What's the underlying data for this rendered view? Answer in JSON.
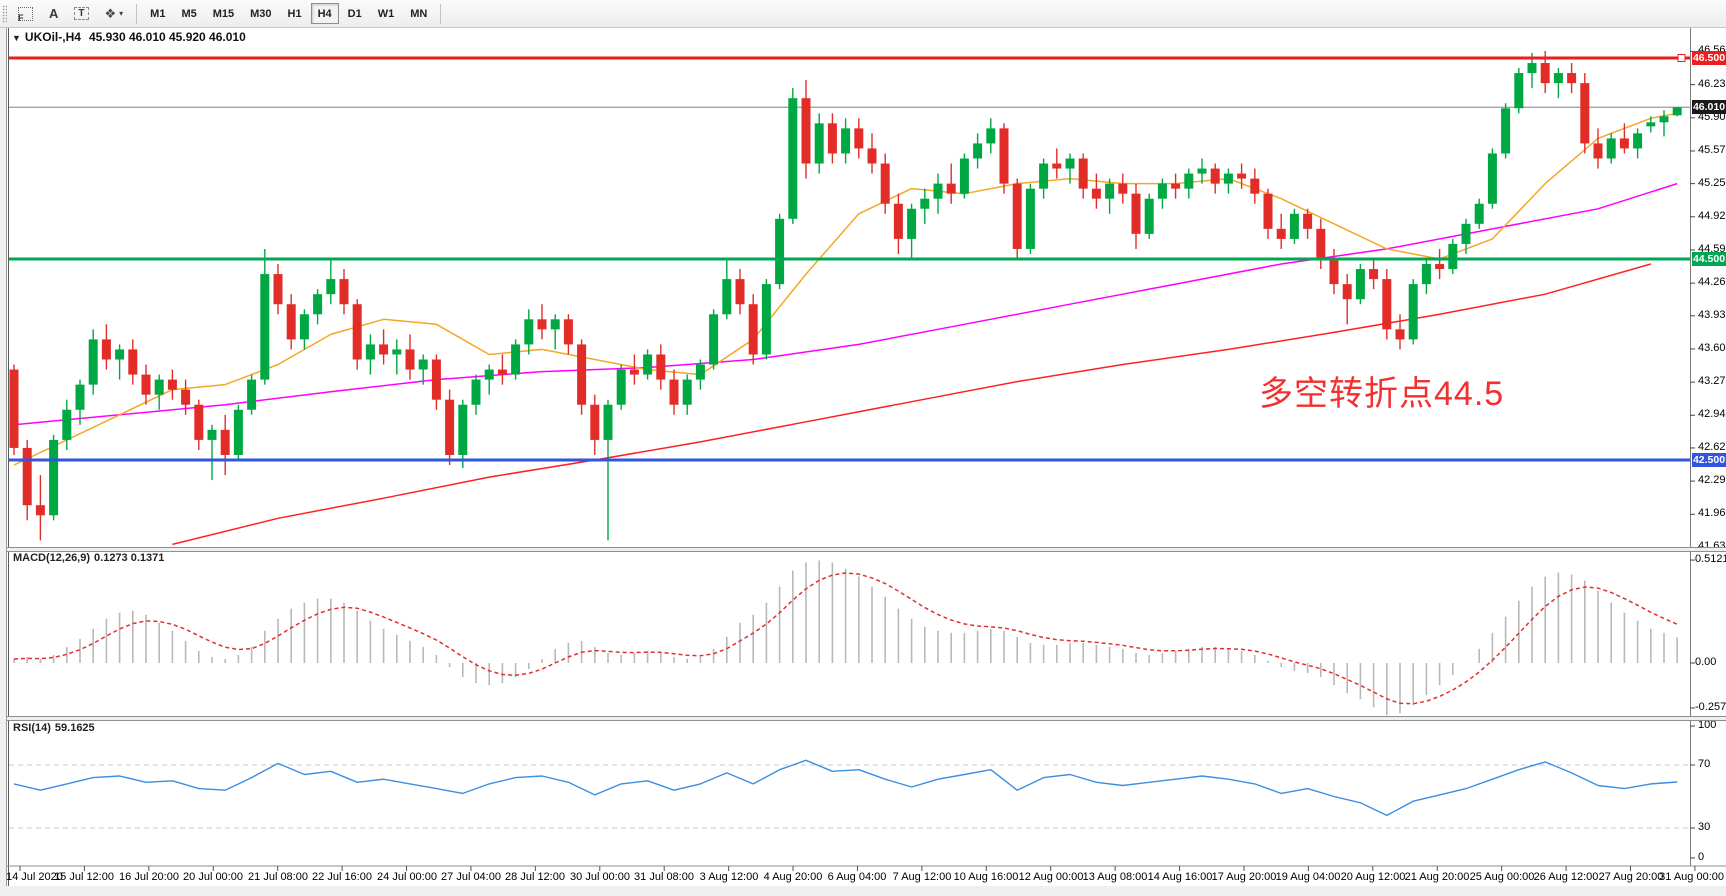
{
  "toolbar": {
    "tools": [
      {
        "name": "snap-grid",
        "glyph": "F"
      },
      {
        "name": "text-label",
        "glyph": "A"
      },
      {
        "name": "text-frame",
        "glyph": "T"
      },
      {
        "name": "shapes",
        "glyph": "❖"
      }
    ],
    "timeframes": [
      "M1",
      "M5",
      "M15",
      "M30",
      "H1",
      "H4",
      "D1",
      "W1",
      "MN"
    ],
    "active_timeframe": "H4"
  },
  "chart": {
    "title": "UKOil-,H4",
    "ohlc": "45.930 46.010 45.920 46.010",
    "annotation": {
      "text": "多空转折点44.5",
      "color": "#f2302e"
    },
    "levels": [
      {
        "price": "46.500",
        "value": 46.5,
        "color": "#ee1c1c",
        "type": "resistance"
      },
      {
        "price": "46.010",
        "value": 46.01,
        "color": "#1a1a1a",
        "type": "current"
      },
      {
        "price": "44.500",
        "value": 44.5,
        "color": "#00a651",
        "type": "pivot"
      },
      {
        "price": "42.500",
        "value": 42.5,
        "color": "#3056e0",
        "type": "support"
      }
    ]
  },
  "chart_data": {
    "type": "candlestick",
    "symbol": "UKOil-",
    "timeframe": "H4",
    "ohlc_current": {
      "open": 45.93,
      "high": 46.01,
      "low": 45.92,
      "close": 46.01
    },
    "price_range_visible": [
      41.63,
      46.66
    ],
    "y_axis_ticks": [
      "46.565",
      "46.235",
      "45.905",
      "45.575",
      "45.250",
      "44.920",
      "44.590",
      "44.260",
      "43.935",
      "43.605",
      "43.275",
      "42.945",
      "42.620",
      "42.290",
      "41.960",
      "41.630"
    ],
    "x_axis_labels": [
      "14 Jul 2020",
      "15 Jul 12:00",
      "16 Jul 20:00",
      "20 Jul 00:00",
      "21 Jul 08:00",
      "22 Jul 16:00",
      "24 Jul 00:00",
      "27 Jul 04:00",
      "28 Jul 12:00",
      "30 Jul 00:00",
      "31 Jul 08:00",
      "3 Aug 12:00",
      "4 Aug 20:00",
      "6 Aug 04:00",
      "7 Aug 12:00",
      "10 Aug 16:00",
      "12 Aug 00:00",
      "13 Aug 08:00",
      "14 Aug 16:00",
      "17 Aug 20:00",
      "19 Aug 04:00",
      "20 Aug 12:00",
      "21 Aug 20:00",
      "25 Aug 00:00",
      "26 Aug 12:00",
      "27 Aug 20:00",
      "31 Aug 00:00"
    ],
    "candle_colors": {
      "up": "#00a843",
      "down": "#e22c28"
    },
    "candles": [
      [
        43.4,
        43.45,
        42.55,
        42.62
      ],
      [
        42.62,
        42.7,
        41.9,
        42.05
      ],
      [
        42.05,
        42.35,
        41.7,
        41.95
      ],
      [
        41.95,
        42.75,
        41.9,
        42.7
      ],
      [
        42.7,
        43.1,
        42.6,
        43.0
      ],
      [
        43.0,
        43.3,
        42.85,
        43.25
      ],
      [
        43.25,
        43.8,
        43.15,
        43.7
      ],
      [
        43.7,
        43.85,
        43.4,
        43.5
      ],
      [
        43.5,
        43.65,
        43.3,
        43.6
      ],
      [
        43.6,
        43.7,
        43.25,
        43.35
      ],
      [
        43.35,
        43.45,
        43.05,
        43.15
      ],
      [
        43.15,
        43.35,
        43.0,
        43.3
      ],
      [
        43.3,
        43.4,
        43.1,
        43.2
      ],
      [
        43.2,
        43.3,
        42.95,
        43.05
      ],
      [
        43.05,
        43.1,
        42.6,
        42.7
      ],
      [
        42.7,
        42.85,
        42.3,
        42.8
      ],
      [
        42.8,
        42.95,
        42.35,
        42.55
      ],
      [
        42.55,
        43.05,
        42.5,
        43.0
      ],
      [
        43.0,
        43.35,
        42.95,
        43.3
      ],
      [
        43.3,
        44.6,
        43.25,
        44.35
      ],
      [
        44.35,
        44.45,
        43.95,
        44.05
      ],
      [
        44.05,
        44.15,
        43.6,
        43.7
      ],
      [
        43.7,
        44.0,
        43.6,
        43.95
      ],
      [
        43.95,
        44.2,
        43.85,
        44.15
      ],
      [
        44.15,
        44.5,
        44.05,
        44.3
      ],
      [
        44.3,
        44.4,
        43.95,
        44.05
      ],
      [
        44.05,
        44.1,
        43.4,
        43.5
      ],
      [
        43.5,
        43.75,
        43.35,
        43.65
      ],
      [
        43.65,
        43.8,
        43.45,
        43.55
      ],
      [
        43.55,
        43.7,
        43.35,
        43.6
      ],
      [
        43.6,
        43.75,
        43.3,
        43.4
      ],
      [
        43.4,
        43.55,
        43.25,
        43.5
      ],
      [
        43.5,
        43.55,
        43.0,
        43.1
      ],
      [
        43.1,
        43.2,
        42.45,
        42.55
      ],
      [
        42.55,
        43.1,
        42.42,
        43.05
      ],
      [
        43.05,
        43.35,
        42.95,
        43.3
      ],
      [
        43.3,
        43.45,
        43.15,
        43.4
      ],
      [
        43.4,
        43.55,
        43.25,
        43.35
      ],
      [
        43.35,
        43.7,
        43.3,
        43.65
      ],
      [
        43.65,
        44.0,
        43.55,
        43.9
      ],
      [
        43.9,
        44.05,
        43.7,
        43.8
      ],
      [
        43.8,
        43.95,
        43.6,
        43.9
      ],
      [
        43.9,
        43.95,
        43.55,
        43.65
      ],
      [
        43.65,
        43.7,
        42.95,
        43.05
      ],
      [
        43.05,
        43.15,
        42.55,
        42.7
      ],
      [
        42.7,
        43.1,
        41.7,
        43.05
      ],
      [
        43.05,
        43.45,
        43.0,
        43.4
      ],
      [
        43.4,
        43.55,
        43.25,
        43.35
      ],
      [
        43.35,
        43.6,
        43.3,
        43.55
      ],
      [
        43.55,
        43.65,
        43.2,
        43.3
      ],
      [
        43.3,
        43.4,
        42.95,
        43.05
      ],
      [
        43.05,
        43.35,
        42.95,
        43.3
      ],
      [
        43.3,
        43.5,
        43.2,
        43.45
      ],
      [
        43.45,
        44.0,
        43.4,
        43.95
      ],
      [
        43.95,
        44.5,
        43.9,
        44.3
      ],
      [
        44.3,
        44.4,
        43.95,
        44.05
      ],
      [
        44.05,
        44.15,
        43.45,
        43.55
      ],
      [
        43.55,
        44.3,
        43.5,
        44.25
      ],
      [
        44.25,
        44.95,
        44.2,
        44.9
      ],
      [
        44.9,
        46.2,
        44.85,
        46.1
      ],
      [
        46.1,
        46.28,
        45.3,
        45.45
      ],
      [
        45.45,
        45.95,
        45.35,
        45.85
      ],
      [
        45.85,
        45.95,
        45.45,
        45.55
      ],
      [
        45.55,
        45.9,
        45.45,
        45.8
      ],
      [
        45.8,
        45.9,
        45.5,
        45.6
      ],
      [
        45.6,
        45.75,
        45.35,
        45.45
      ],
      [
        45.45,
        45.55,
        44.95,
        45.05
      ],
      [
        45.05,
        45.15,
        44.55,
        44.7
      ],
      [
        44.7,
        45.05,
        44.5,
        45.0
      ],
      [
        45.0,
        45.2,
        44.85,
        45.1
      ],
      [
        45.1,
        45.35,
        44.95,
        45.25
      ],
      [
        45.25,
        45.45,
        45.05,
        45.15
      ],
      [
        45.15,
        45.55,
        45.1,
        45.5
      ],
      [
        45.5,
        45.75,
        45.4,
        45.65
      ],
      [
        45.65,
        45.9,
        45.55,
        45.8
      ],
      [
        45.8,
        45.85,
        45.15,
        45.25
      ],
      [
        45.25,
        45.3,
        44.5,
        44.6
      ],
      [
        44.6,
        45.25,
        44.55,
        45.2
      ],
      [
        45.2,
        45.5,
        45.1,
        45.45
      ],
      [
        45.45,
        45.6,
        45.3,
        45.4
      ],
      [
        45.4,
        45.55,
        45.25,
        45.5
      ],
      [
        45.5,
        45.55,
        45.1,
        45.2
      ],
      [
        45.2,
        45.35,
        45.0,
        45.1
      ],
      [
        45.1,
        45.3,
        44.95,
        45.25
      ],
      [
        45.25,
        45.35,
        45.05,
        45.15
      ],
      [
        45.15,
        45.25,
        44.6,
        44.75
      ],
      [
        44.75,
        45.15,
        44.7,
        45.1
      ],
      [
        45.1,
        45.3,
        45.0,
        45.25
      ],
      [
        45.25,
        45.35,
        45.1,
        45.2
      ],
      [
        45.2,
        45.4,
        45.1,
        45.35
      ],
      [
        45.35,
        45.5,
        45.25,
        45.4
      ],
      [
        45.4,
        45.45,
        45.15,
        45.25
      ],
      [
        45.25,
        45.4,
        45.15,
        45.35
      ],
      [
        45.35,
        45.45,
        45.2,
        45.3
      ],
      [
        45.3,
        45.4,
        45.05,
        45.15
      ],
      [
        45.15,
        45.2,
        44.7,
        44.8
      ],
      [
        44.8,
        44.95,
        44.6,
        44.7
      ],
      [
        44.7,
        45.0,
        44.65,
        44.95
      ],
      [
        44.95,
        45.0,
        44.7,
        44.8
      ],
      [
        44.8,
        44.9,
        44.4,
        44.5
      ],
      [
        44.5,
        44.6,
        44.15,
        44.25
      ],
      [
        44.25,
        44.35,
        43.85,
        44.1
      ],
      [
        44.1,
        44.45,
        44.05,
        44.4
      ],
      [
        44.4,
        44.5,
        44.2,
        44.3
      ],
      [
        44.3,
        44.4,
        43.7,
        43.8
      ],
      [
        43.8,
        43.95,
        43.6,
        43.7
      ],
      [
        43.7,
        44.3,
        43.65,
        44.25
      ],
      [
        44.25,
        44.5,
        44.15,
        44.45
      ],
      [
        44.45,
        44.6,
        44.3,
        44.4
      ],
      [
        44.4,
        44.7,
        44.35,
        44.65
      ],
      [
        44.65,
        44.9,
        44.55,
        44.85
      ],
      [
        44.85,
        45.1,
        44.8,
        45.05
      ],
      [
        45.05,
        45.6,
        45.0,
        45.55
      ],
      [
        45.55,
        46.05,
        45.5,
        46.0
      ],
      [
        46.0,
        46.4,
        45.95,
        46.35
      ],
      [
        46.35,
        46.55,
        46.2,
        46.45
      ],
      [
        46.45,
        46.57,
        46.15,
        46.25
      ],
      [
        46.25,
        46.4,
        46.1,
        46.35
      ],
      [
        46.35,
        46.45,
        46.15,
        46.25
      ],
      [
        46.25,
        46.35,
        45.55,
        45.65
      ],
      [
        45.65,
        45.8,
        45.4,
        45.5
      ],
      [
        45.5,
        45.75,
        45.45,
        45.7
      ],
      [
        45.7,
        45.85,
        45.55,
        45.6
      ],
      [
        45.6,
        45.8,
        45.5,
        45.75
      ],
      [
        45.82,
        45.92,
        45.76,
        45.86
      ],
      [
        45.86,
        45.98,
        45.72,
        45.92
      ],
      [
        45.93,
        46.01,
        45.92,
        46.01
      ]
    ],
    "moving_averages": {
      "fast_orange": {
        "start": 0,
        "step": 4,
        "color": "#f5a623",
        "values": [
          42.45,
          42.7,
          42.95,
          43.2,
          43.25,
          43.45,
          43.75,
          43.9,
          43.85,
          43.55,
          43.6,
          43.5,
          43.4,
          43.35,
          43.7,
          44.35,
          44.95,
          45.2,
          45.15,
          45.25,
          45.3,
          45.25,
          45.25,
          45.3,
          45.1,
          44.85,
          44.6,
          44.5,
          44.7,
          45.25,
          45.7,
          45.9,
          45.95
        ]
      },
      "mid_magenta": {
        "start": 0,
        "step": 8,
        "color": "#ff00ff",
        "values": [
          42.85,
          42.95,
          43.05,
          43.18,
          43.3,
          43.38,
          43.42,
          43.5,
          43.65,
          43.85,
          44.05,
          44.25,
          44.45,
          44.6,
          44.8,
          45.0,
          45.25
        ]
      },
      "slow_red": {
        "start": 12,
        "step": 8,
        "color": "#ff2020",
        "values": [
          41.66,
          41.92,
          42.12,
          42.33,
          42.5,
          42.68,
          42.88,
          43.08,
          43.28,
          43.45,
          43.6,
          43.77,
          43.95,
          44.15,
          44.45
        ]
      }
    },
    "macd": {
      "label": "MACD(12,26,9)",
      "current_values": "0.1273 0.1371",
      "axis_ticks": [
        "0.5121",
        "0.00",
        "-0.2578"
      ],
      "histogram_color": "#b8b8b8",
      "signal_color": "#e03030",
      "histogram": [
        0.02,
        0.03,
        0.02,
        0.04,
        0.08,
        0.12,
        0.17,
        0.22,
        0.25,
        0.26,
        0.24,
        0.2,
        0.16,
        0.11,
        0.06,
        0.03,
        0.02,
        0.04,
        0.08,
        0.16,
        0.22,
        0.27,
        0.3,
        0.32,
        0.32,
        0.3,
        0.26,
        0.21,
        0.17,
        0.14,
        0.11,
        0.08,
        0.04,
        -0.02,
        -0.07,
        -0.1,
        -0.11,
        -0.1,
        -0.07,
        -0.03,
        0.02,
        0.07,
        0.1,
        0.11,
        0.08,
        0.05,
        0.04,
        0.05,
        0.06,
        0.05,
        0.03,
        0.02,
        0.03,
        0.07,
        0.13,
        0.2,
        0.24,
        0.3,
        0.38,
        0.46,
        0.5,
        0.51,
        0.5,
        0.47,
        0.43,
        0.38,
        0.33,
        0.27,
        0.22,
        0.18,
        0.16,
        0.15,
        0.15,
        0.16,
        0.17,
        0.16,
        0.13,
        0.1,
        0.09,
        0.09,
        0.1,
        0.1,
        0.09,
        0.08,
        0.07,
        0.05,
        0.04,
        0.05,
        0.06,
        0.07,
        0.08,
        0.08,
        0.07,
        0.06,
        0.04,
        0.01,
        -0.02,
        -0.04,
        -0.05,
        -0.07,
        -0.11,
        -0.15,
        -0.18,
        -0.22,
        -0.26,
        -0.25,
        -0.21,
        -0.16,
        -0.11,
        -0.06,
        0.0,
        0.07,
        0.15,
        0.23,
        0.31,
        0.38,
        0.43,
        0.45,
        0.44,
        0.41,
        0.36,
        0.3,
        0.25,
        0.21,
        0.17,
        0.15,
        0.1273
      ]
    },
    "rsi": {
      "label": "RSI(14)",
      "current_value": "59.1625",
      "axis_ticks": [
        "100",
        "70",
        "30",
        "0"
      ],
      "levels": [
        70,
        30
      ],
      "line_color": "#3b8ee2",
      "values_step2": [
        58,
        54,
        58,
        62,
        63,
        59,
        60,
        55,
        54,
        62,
        71,
        64,
        66,
        59,
        61,
        58,
        55,
        52,
        58,
        62,
        63,
        59,
        51,
        58,
        60,
        54,
        58,
        65,
        58,
        67,
        73,
        66,
        67,
        61,
        56,
        61,
        64,
        67,
        54,
        62,
        64,
        59,
        57,
        59,
        61,
        63,
        61,
        58,
        52,
        55,
        50,
        46,
        38,
        47,
        51,
        55,
        61,
        67,
        72,
        65,
        57,
        55,
        58,
        59.2
      ]
    }
  }
}
